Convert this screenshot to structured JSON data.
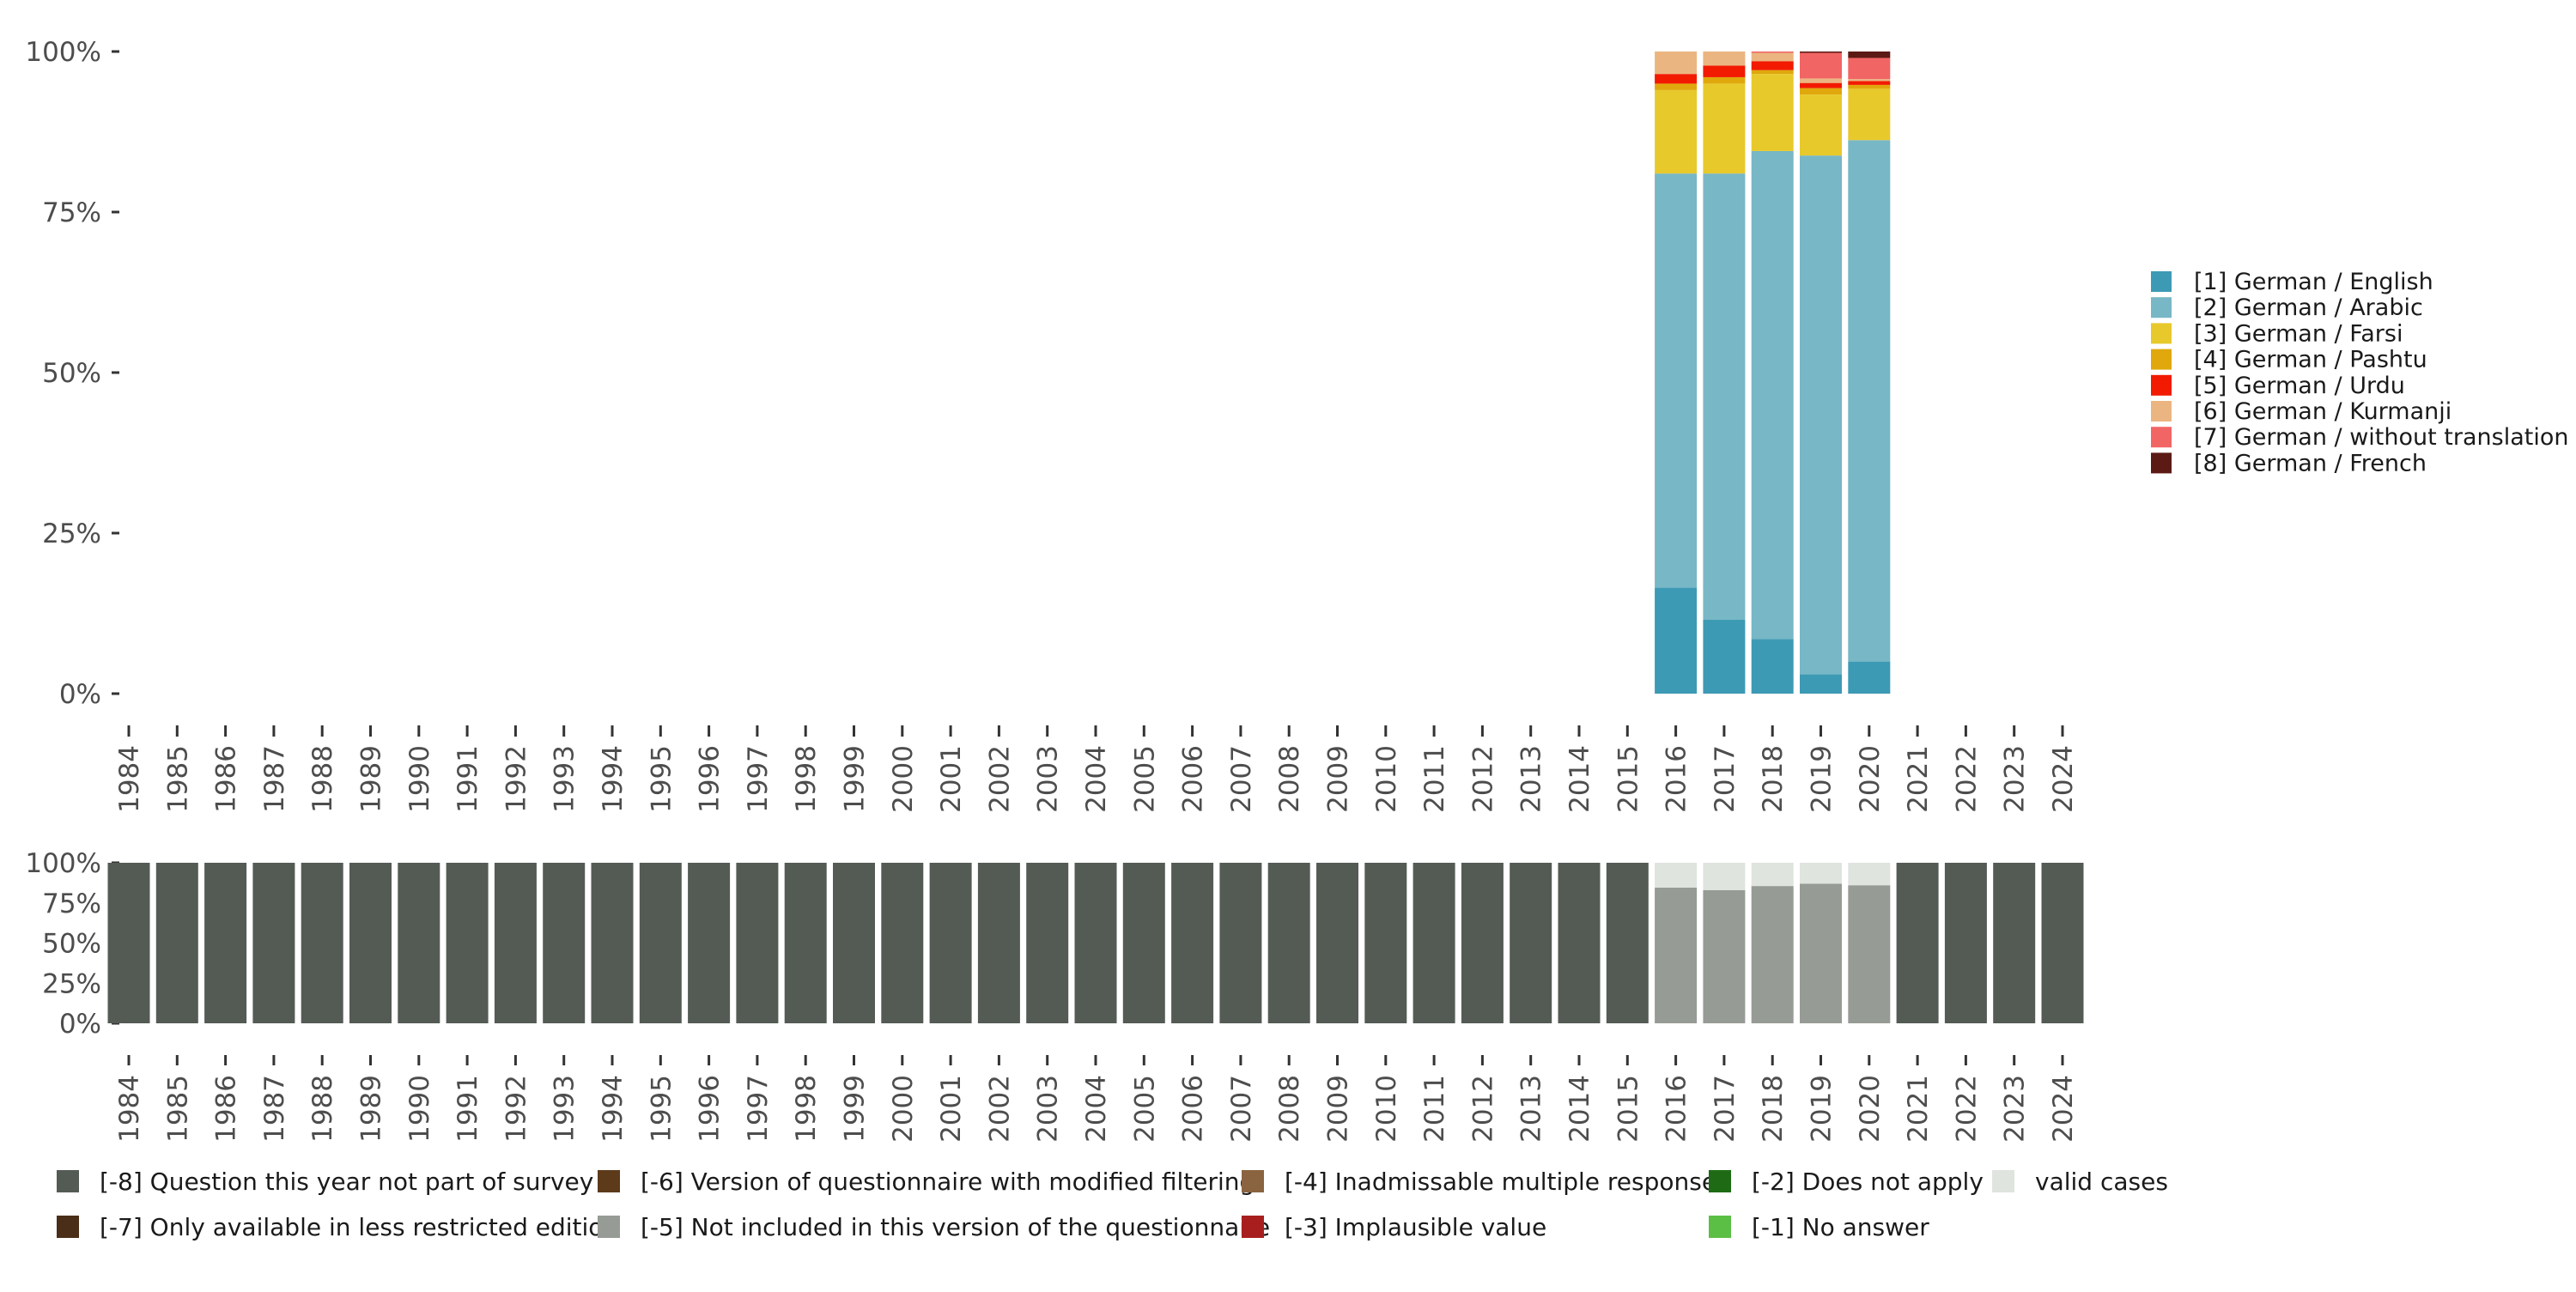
{
  "chart_data": [
    {
      "type": "bar",
      "stacked": true,
      "normalized": true,
      "x": [
        1984,
        1985,
        1986,
        1987,
        1988,
        1989,
        1990,
        1991,
        1992,
        1993,
        1994,
        1995,
        1996,
        1997,
        1998,
        1999,
        2000,
        2001,
        2002,
        2003,
        2004,
        2005,
        2006,
        2007,
        2008,
        2009,
        2010,
        2011,
        2012,
        2013,
        2014,
        2015,
        2016,
        2017,
        2018,
        2019,
        2020,
        2021,
        2022,
        2023,
        2024
      ],
      "y_ticks": [
        "0%",
        "25%",
        "50%",
        "75%",
        "100%"
      ],
      "ylim": [
        0,
        100
      ],
      "legend_position": "right",
      "series": [
        {
          "name": "[1] German / English",
          "color": "#3d9ab5",
          "values": {
            "2016": 16.5,
            "2017": 11.5,
            "2018": 8.5,
            "2019": 3.0,
            "2020": 5.0
          }
        },
        {
          "name": "[2] German / Arabic",
          "color": "#78b7c5",
          "values": {
            "2016": 64.5,
            "2017": 69.5,
            "2018": 76.0,
            "2019": 80.8,
            "2020": 81.2
          }
        },
        {
          "name": "[3] German / Farsi",
          "color": "#e8c92c",
          "values": {
            "2016": 13.0,
            "2017": 14.0,
            "2018": 12.0,
            "2019": 9.5,
            "2020": 8.0
          }
        },
        {
          "name": "[4] German / Pashtu",
          "color": "#e0a80c",
          "values": {
            "2016": 1.0,
            "2017": 1.0,
            "2018": 0.6,
            "2019": 1.0,
            "2020": 0.6
          }
        },
        {
          "name": "[5] German / Urdu",
          "color": "#f21a00",
          "values": {
            "2016": 1.5,
            "2017": 1.8,
            "2018": 1.4,
            "2019": 0.8,
            "2020": 0.6
          }
        },
        {
          "name": "[6] German / Kurmanji",
          "color": "#ebb581",
          "values": {
            "2016": 3.5,
            "2017": 2.2,
            "2018": 1.3,
            "2019": 0.7,
            "2020": 0.3
          }
        },
        {
          "name": "[7] German / without translation",
          "color": "#f26565",
          "values": {
            "2016": 0.0,
            "2017": 0.0,
            "2018": 0.2,
            "2019": 4.0,
            "2020": 3.3
          }
        },
        {
          "name": "[8] German / French",
          "color": "#5b1a14",
          "values": {
            "2016": 0.0,
            "2017": 0.0,
            "2018": 0.0,
            "2019": 0.2,
            "2020": 1.0
          }
        }
      ]
    },
    {
      "type": "bar",
      "stacked": true,
      "normalized": true,
      "x": [
        1984,
        1985,
        1986,
        1987,
        1988,
        1989,
        1990,
        1991,
        1992,
        1993,
        1994,
        1995,
        1996,
        1997,
        1998,
        1999,
        2000,
        2001,
        2002,
        2003,
        2004,
        2005,
        2006,
        2007,
        2008,
        2009,
        2010,
        2011,
        2012,
        2013,
        2014,
        2015,
        2016,
        2017,
        2018,
        2019,
        2020,
        2021,
        2022,
        2023,
        2024
      ],
      "y_ticks": [
        "0%",
        "25%",
        "50%",
        "75%",
        "100%"
      ],
      "ylim": [
        0,
        100
      ],
      "legend_position": "bottom",
      "series": [
        {
          "name": "[-8] Question this year not part of survey",
          "color": "#545b55",
          "values": {
            "2016": 0,
            "2017": 0,
            "2018": 0,
            "2019": 0,
            "2020": 0,
            "other": 100
          }
        },
        {
          "name": "[-7] Only available in less restricted edition",
          "color": "#4a2e17",
          "values": {}
        },
        {
          "name": "[-6] Version of questionnaire with modified filtering",
          "color": "#5c3a1a",
          "values": {}
        },
        {
          "name": "[-5] Not included in this version of the questionnaire",
          "color": "#979b95",
          "values": {
            "2016": 84.5,
            "2017": 83.0,
            "2018": 85.5,
            "2019": 87.0,
            "2020": 86.0
          }
        },
        {
          "name": "[-4] Inadmissable multiple response",
          "color": "#8a6440",
          "values": {}
        },
        {
          "name": "[-3] Implausible value",
          "color": "#a81e1e",
          "values": {}
        },
        {
          "name": "[-2] Does not apply",
          "color": "#1f6b15",
          "values": {}
        },
        {
          "name": "[-1] No answer",
          "color": "#5bbf45",
          "values": {}
        },
        {
          "name": "valid cases",
          "color": "#dfe4de",
          "values": {
            "2016": 15.5,
            "2017": 17.0,
            "2018": 14.5,
            "2019": 13.0,
            "2020": 14.0
          }
        }
      ]
    }
  ]
}
